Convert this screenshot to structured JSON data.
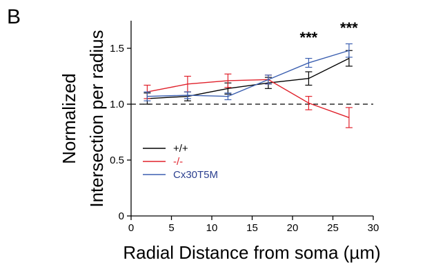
{
  "panel_label": "B",
  "chart_data": {
    "type": "line",
    "xlabel": "Radial Distance from soma (µm)",
    "ylabel_lines": [
      "Normalized",
      "Intersection per radius"
    ],
    "xlim": [
      0,
      30
    ],
    "ylim": [
      0,
      1.75
    ],
    "xticks": [
      0,
      5,
      10,
      15,
      20,
      25,
      30
    ],
    "xtick_labels": [
      "0",
      "5",
      "10",
      "15",
      "20",
      "25",
      "30"
    ],
    "yticks": [
      0,
      0.5,
      1.0,
      1.5
    ],
    "ytick_labels": [
      "0",
      "0.5",
      "1.0",
      "1.5"
    ],
    "reference_line": 1.0,
    "grid": false,
    "legend_position": "lower-left",
    "x": [
      2,
      7,
      12,
      17,
      22,
      27
    ],
    "series": [
      {
        "name": "+/+",
        "color": "#000000",
        "values": [
          1.05,
          1.07,
          1.14,
          1.19,
          1.23,
          1.41
        ],
        "errors": [
          0.05,
          0.04,
          0.05,
          0.05,
          0.06,
          0.07
        ]
      },
      {
        "name": "-/-",
        "color": "#e0202a",
        "values": [
          1.11,
          1.18,
          1.21,
          1.22,
          1.01,
          0.88
        ],
        "errors": [
          0.06,
          0.07,
          0.06,
          0.04,
          0.06,
          0.09
        ]
      },
      {
        "name": "Cx30T5M",
        "color": "#3b5fb0",
        "values": [
          1.07,
          1.08,
          1.07,
          1.22,
          1.37,
          1.48
        ],
        "errors": [
          0.04,
          0.03,
          0.03,
          0.04,
          0.04,
          0.06
        ]
      }
    ],
    "annotations": [
      {
        "text": "***",
        "x": 22
      },
      {
        "text": "***",
        "x": 27
      }
    ]
  }
}
